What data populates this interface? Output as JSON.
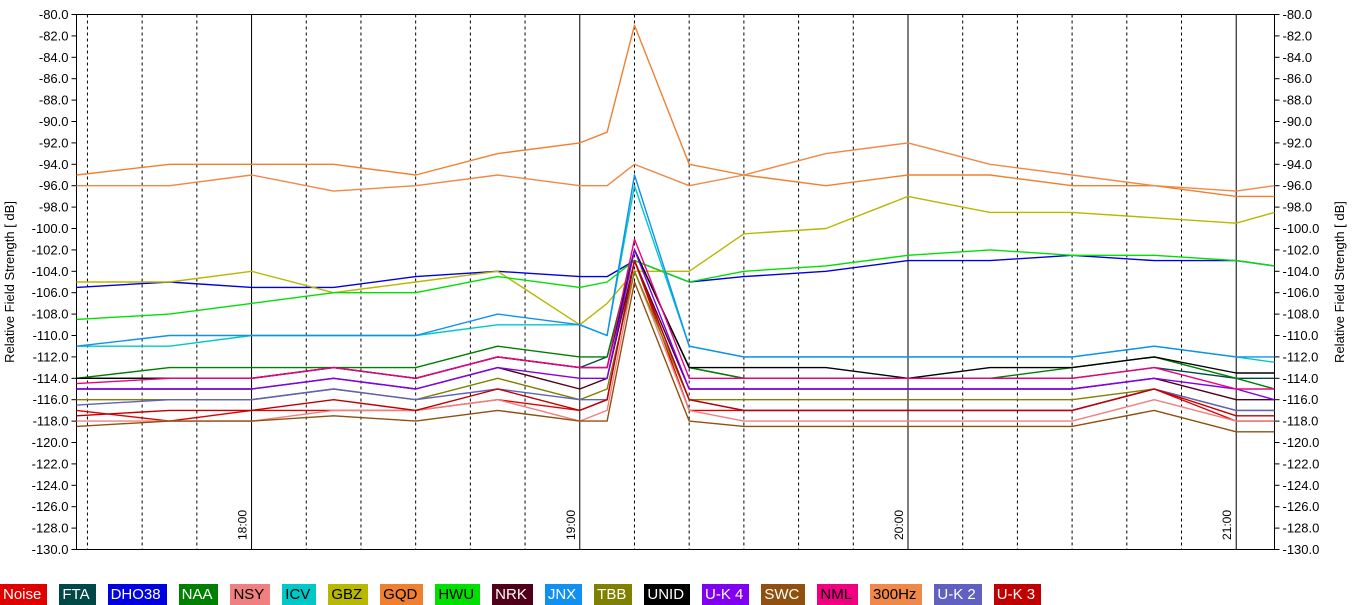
{
  "chart_data": {
    "type": "line",
    "ylabel": "Relative Field Strength [ dB]",
    "y2label": "Relative Field Strength [ dB]",
    "ylim": [
      -130,
      -80
    ],
    "ystep": 2,
    "xlim": [
      "17:28",
      "21:07"
    ],
    "time_labels": [
      "18:00",
      "19:00",
      "20:00",
      "21:00"
    ],
    "grid": "vertical lines every 10 minutes (hour lines solid, others dashed)",
    "legend_placement": "bottom",
    "series": [
      {
        "name": "Noise",
        "color": "#e00000",
        "x": [
          "17:28",
          "17:45",
          "18:00",
          "18:15",
          "18:30",
          "18:45",
          "19:00",
          "19:05",
          "19:10",
          "19:20",
          "19:30",
          "19:45",
          "20:00",
          "20:15",
          "20:30",
          "20:45",
          "21:00",
          "21:07"
        ],
        "values": [
          -117,
          -118,
          -117,
          -117,
          -117,
          -116,
          -117,
          -116,
          -103,
          -117,
          -117,
          -117,
          -117,
          -117,
          -117,
          -115,
          -118,
          -118
        ]
      },
      {
        "name": "FTA",
        "color": "#004848",
        "x": [
          "17:28",
          "17:45",
          "18:00",
          "18:15",
          "18:30",
          "18:45",
          "19:00",
          "19:05",
          "19:10",
          "19:20",
          "19:30",
          "19:45",
          "20:00",
          "20:15",
          "20:30",
          "20:45",
          "21:00",
          "21:07"
        ],
        "values": [
          -114,
          -114,
          -114,
          -113,
          -114,
          -112,
          -113,
          -112,
          -102,
          -113,
          -114,
          -114,
          -114,
          -114,
          -114,
          -113,
          -114,
          -114
        ]
      },
      {
        "name": "DHO38",
        "color": "#0000e0",
        "x": [
          "17:28",
          "17:45",
          "18:00",
          "18:15",
          "18:30",
          "18:45",
          "19:00",
          "19:05",
          "19:10",
          "19:20",
          "19:30",
          "19:45",
          "20:00",
          "20:15",
          "20:30",
          "20:45",
          "21:00",
          "21:07"
        ],
        "values": [
          -105.5,
          -105,
          -105.5,
          -105.5,
          -104.5,
          -104,
          -104.5,
          -104.5,
          -103,
          -105,
          -104.5,
          -104,
          -103,
          -103,
          -102.5,
          -103,
          -103,
          -103.5
        ]
      },
      {
        "name": "NAA",
        "color": "#008000",
        "x": [
          "17:28",
          "17:45",
          "18:00",
          "18:15",
          "18:30",
          "18:45",
          "19:00",
          "19:05",
          "19:10",
          "19:20",
          "19:30",
          "19:45",
          "20:00",
          "20:15",
          "20:30",
          "20:45",
          "21:00",
          "21:07"
        ],
        "values": [
          -114,
          -113,
          -113,
          -113,
          -113,
          -111,
          -112,
          -112,
          -102,
          -113,
          -114,
          -114,
          -114,
          -114,
          -113,
          -112,
          -114,
          -115
        ]
      },
      {
        "name": "NSY",
        "color": "#f08080",
        "x": [
          "17:28",
          "17:45",
          "18:00",
          "18:15",
          "18:30",
          "18:45",
          "19:00",
          "19:05",
          "19:10",
          "19:20",
          "19:30",
          "19:45",
          "20:00",
          "20:15",
          "20:30",
          "20:45",
          "21:00",
          "21:07"
        ],
        "values": [
          -118,
          -118,
          -118,
          -117,
          -117,
          -116,
          -118,
          -117,
          -104,
          -117,
          -118,
          -118,
          -118,
          -118,
          -118,
          -116,
          -118,
          -118
        ]
      },
      {
        "name": "ICV",
        "color": "#00c8c8",
        "x": [
          "17:28",
          "17:45",
          "18:00",
          "18:15",
          "18:30",
          "18:45",
          "19:00",
          "19:05",
          "19:10",
          "19:20",
          "19:30",
          "19:45",
          "20:00",
          "20:15",
          "20:30",
          "20:45",
          "21:00",
          "21:07"
        ],
        "values": [
          -111,
          -111,
          -110,
          -110,
          -110,
          -109,
          -109,
          -110,
          -96,
          -111,
          -112,
          -112,
          -112,
          -112,
          -112,
          -111,
          -112,
          -112.5
        ]
      },
      {
        "name": "GBZ",
        "color": "#b8b800",
        "x": [
          "17:28",
          "17:45",
          "18:00",
          "18:15",
          "18:30",
          "18:45",
          "19:00",
          "19:05",
          "19:10",
          "19:20",
          "19:30",
          "19:45",
          "20:00",
          "20:15",
          "20:30",
          "20:45",
          "21:00",
          "21:07"
        ],
        "values": [
          -105,
          -105,
          -104,
          -106,
          -105,
          -104,
          -109,
          -107,
          -104,
          -104,
          -100.5,
          -100,
          -97,
          -98.5,
          -98.5,
          -99,
          -99.5,
          -98.5
        ]
      },
      {
        "name": "GQD",
        "color": "#f08030",
        "x": [
          "17:28",
          "17:45",
          "18:00",
          "18:15",
          "18:30",
          "18:45",
          "19:00",
          "19:05",
          "19:10",
          "19:20",
          "19:30",
          "19:45",
          "20:00",
          "20:15",
          "20:30",
          "20:45",
          "21:00",
          "21:07"
        ],
        "values": [
          -95,
          -94,
          -94,
          -94,
          -95,
          -93,
          -92,
          -91,
          -81,
          -94,
          -95,
          -96,
          -95,
          -95,
          -96,
          -96,
          -97,
          -97
        ]
      },
      {
        "name": "HWU",
        "color": "#00e000",
        "x": [
          "17:28",
          "17:45",
          "18:00",
          "18:15",
          "18:30",
          "18:45",
          "19:00",
          "19:05",
          "19:10",
          "19:20",
          "19:30",
          "19:45",
          "20:00",
          "20:15",
          "20:30",
          "20:45",
          "21:00",
          "21:07"
        ],
        "values": [
          -108.5,
          -108,
          -107,
          -106,
          -106,
          -104.5,
          -105.5,
          -105,
          -103,
          -105,
          -104,
          -103.5,
          -102.5,
          -102,
          -102.5,
          -102.5,
          -103,
          -103.5
        ]
      },
      {
        "name": "NRK",
        "color": "#500018",
        "x": [
          "17:28",
          "17:45",
          "18:00",
          "18:15",
          "18:30",
          "18:45",
          "19:00",
          "19:05",
          "19:10",
          "19:20",
          "19:30",
          "19:45",
          "20:00",
          "20:15",
          "20:30",
          "20:45",
          "21:00",
          "21:07"
        ],
        "values": [
          -115,
          -115,
          -115,
          -114,
          -115,
          -113,
          -115,
          -114,
          -103,
          -115,
          -115,
          -115,
          -115,
          -115,
          -115,
          -114,
          -116,
          -116
        ]
      },
      {
        "name": "JNX",
        "color": "#1090f0",
        "x": [
          "17:28",
          "17:45",
          "18:00",
          "18:15",
          "18:30",
          "18:45",
          "19:00",
          "19:05",
          "19:10",
          "19:20",
          "19:30",
          "19:45",
          "20:00",
          "20:15",
          "20:30",
          "20:45",
          "21:00",
          "21:07"
        ],
        "values": [
          -111,
          -110,
          -110,
          -110,
          -110,
          -108,
          -109,
          -110,
          -95,
          -111,
          -112,
          -112,
          -112,
          -112,
          -112,
          -111,
          -112,
          -112
        ]
      },
      {
        "name": "TBB",
        "color": "#808000",
        "x": [
          "17:28",
          "17:45",
          "18:00",
          "18:15",
          "18:30",
          "18:45",
          "19:00",
          "19:05",
          "19:10",
          "19:20",
          "19:30",
          "19:45",
          "20:00",
          "20:15",
          "20:30",
          "20:45",
          "21:00",
          "21:07"
        ],
        "values": [
          -116,
          -116,
          -116,
          -115,
          -116,
          -114,
          -116,
          -115,
          -104,
          -116,
          -116,
          -116,
          -116,
          -116,
          -116,
          -115,
          -117,
          -117
        ]
      },
      {
        "name": "UNID",
        "color": "#000000",
        "x": [
          "17:28",
          "17:45",
          "18:00",
          "18:15",
          "18:30",
          "18:45",
          "19:00",
          "19:05",
          "19:10",
          "19:20",
          "19:30",
          "19:45",
          "20:00",
          "20:15",
          "20:30",
          "20:45",
          "21:00",
          "21:07"
        ],
        "values": [
          -114,
          -114,
          -114,
          -113,
          -114,
          -112,
          -113,
          -113,
          -102,
          -113,
          -113,
          -113,
          -114,
          -113,
          -113,
          -112,
          -113.5,
          -113.5
        ]
      },
      {
        "name": "U-K 4",
        "color": "#8000f0",
        "x": [
          "17:28",
          "17:45",
          "18:00",
          "18:15",
          "18:30",
          "18:45",
          "19:00",
          "19:05",
          "19:10",
          "19:20",
          "19:30",
          "19:45",
          "20:00",
          "20:15",
          "20:30",
          "20:45",
          "21:00",
          "21:07"
        ],
        "values": [
          -115,
          -115,
          -115,
          -114,
          -115,
          -113,
          -114,
          -114,
          -102,
          -115,
          -115,
          -115,
          -115,
          -115,
          -115,
          -114,
          -115,
          -116
        ]
      },
      {
        "name": "SWC",
        "color": "#905010",
        "x": [
          "17:28",
          "17:45",
          "18:00",
          "18:15",
          "18:30",
          "18:45",
          "19:00",
          "19:05",
          "19:10",
          "19:20",
          "19:30",
          "19:45",
          "20:00",
          "20:15",
          "20:30",
          "20:45",
          "21:00",
          "21:07"
        ],
        "values": [
          -118.5,
          -118,
          -118,
          -117.5,
          -118,
          -117,
          -118,
          -118,
          -105,
          -118,
          -118.5,
          -118.5,
          -118.5,
          -118.5,
          -118.5,
          -117,
          -119,
          -119
        ]
      },
      {
        "name": "NML",
        "color": "#f00080",
        "x": [
          "17:28",
          "17:45",
          "18:00",
          "18:15",
          "18:30",
          "18:45",
          "19:00",
          "19:05",
          "19:10",
          "19:20",
          "19:30",
          "19:45",
          "20:00",
          "20:15",
          "20:30",
          "20:45",
          "21:00",
          "21:07"
        ],
        "values": [
          -114.5,
          -114,
          -114,
          -113,
          -114,
          -112,
          -113,
          -113,
          -101,
          -114,
          -114,
          -114,
          -114,
          -114,
          -114,
          -113,
          -115,
          -115
        ]
      },
      {
        "name": "300Hz",
        "color": "#f08848",
        "x": [
          "17:28",
          "17:45",
          "18:00",
          "18:15",
          "18:30",
          "18:45",
          "19:00",
          "19:05",
          "19:10",
          "19:20",
          "19:30",
          "19:45",
          "20:00",
          "20:15",
          "20:30",
          "20:45",
          "21:00",
          "21:07"
        ],
        "values": [
          -96,
          -96,
          -95,
          -96.5,
          -96,
          -95,
          -96,
          -96,
          -94,
          -96,
          -95,
          -93,
          -92,
          -94,
          -95,
          -96,
          -96.5,
          -96
        ]
      },
      {
        "name": "U-K 2",
        "color": "#6060c0",
        "x": [
          "17:28",
          "17:45",
          "18:00",
          "18:15",
          "18:30",
          "18:45",
          "19:00",
          "19:05",
          "19:10",
          "19:20",
          "19:30",
          "19:45",
          "20:00",
          "20:15",
          "20:30",
          "20:45",
          "21:00",
          "21:07"
        ],
        "values": [
          -116.5,
          -116,
          -116,
          -115,
          -116,
          -115,
          -116,
          -116,
          -103,
          -116,
          -117,
          -117,
          -117,
          -117,
          -117,
          -115,
          -117,
          -117
        ]
      },
      {
        "name": "U-K 3",
        "color": "#c00000",
        "x": [
          "17:28",
          "17:45",
          "18:00",
          "18:15",
          "18:30",
          "18:45",
          "19:00",
          "19:05",
          "19:10",
          "19:20",
          "19:30",
          "19:45",
          "20:00",
          "20:15",
          "20:30",
          "20:45",
          "21:00",
          "21:07"
        ],
        "values": [
          -117.5,
          -117,
          -117,
          -116,
          -117,
          -115,
          -117,
          -116,
          -103,
          -116,
          -117,
          -117,
          -117,
          -117,
          -117,
          -115,
          -117.5,
          -117.5
        ]
      }
    ]
  }
}
